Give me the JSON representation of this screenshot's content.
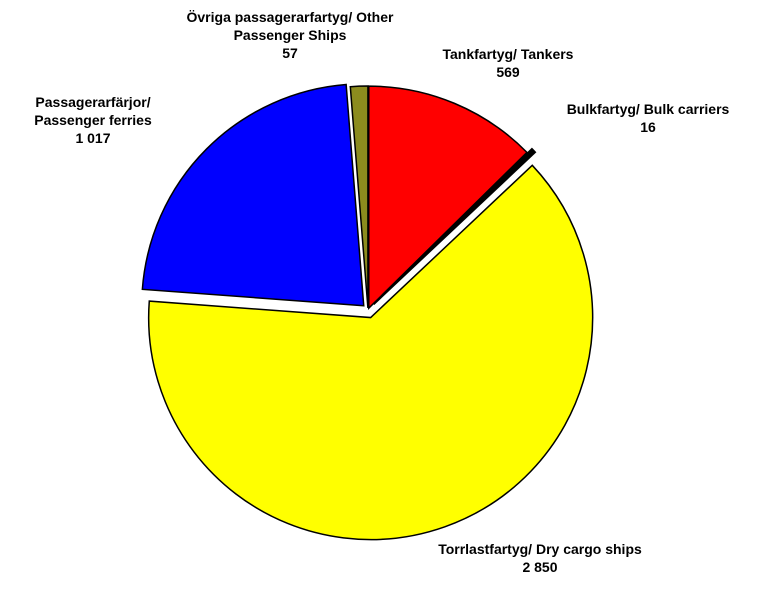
{
  "chart_data": {
    "type": "pie",
    "categories": [
      "Tankfartyg/ Tankers",
      "Bulkfartyg/ Bulk carriers",
      "Torrlastfartyg/ Dry cargo ships",
      "Passagerarfärjor/ Passenger ferries",
      "Övriga passagerarfartyg/ Other Passenger Ships"
    ],
    "values": [
      569,
      16,
      2850,
      1017,
      57
    ],
    "value_labels": [
      "569",
      "16",
      "2 850",
      "1 017",
      "57"
    ],
    "colors": [
      "#ff0000",
      "#000000",
      "#ffff00",
      "#0000ff",
      "#8c8c1e"
    ]
  }
}
